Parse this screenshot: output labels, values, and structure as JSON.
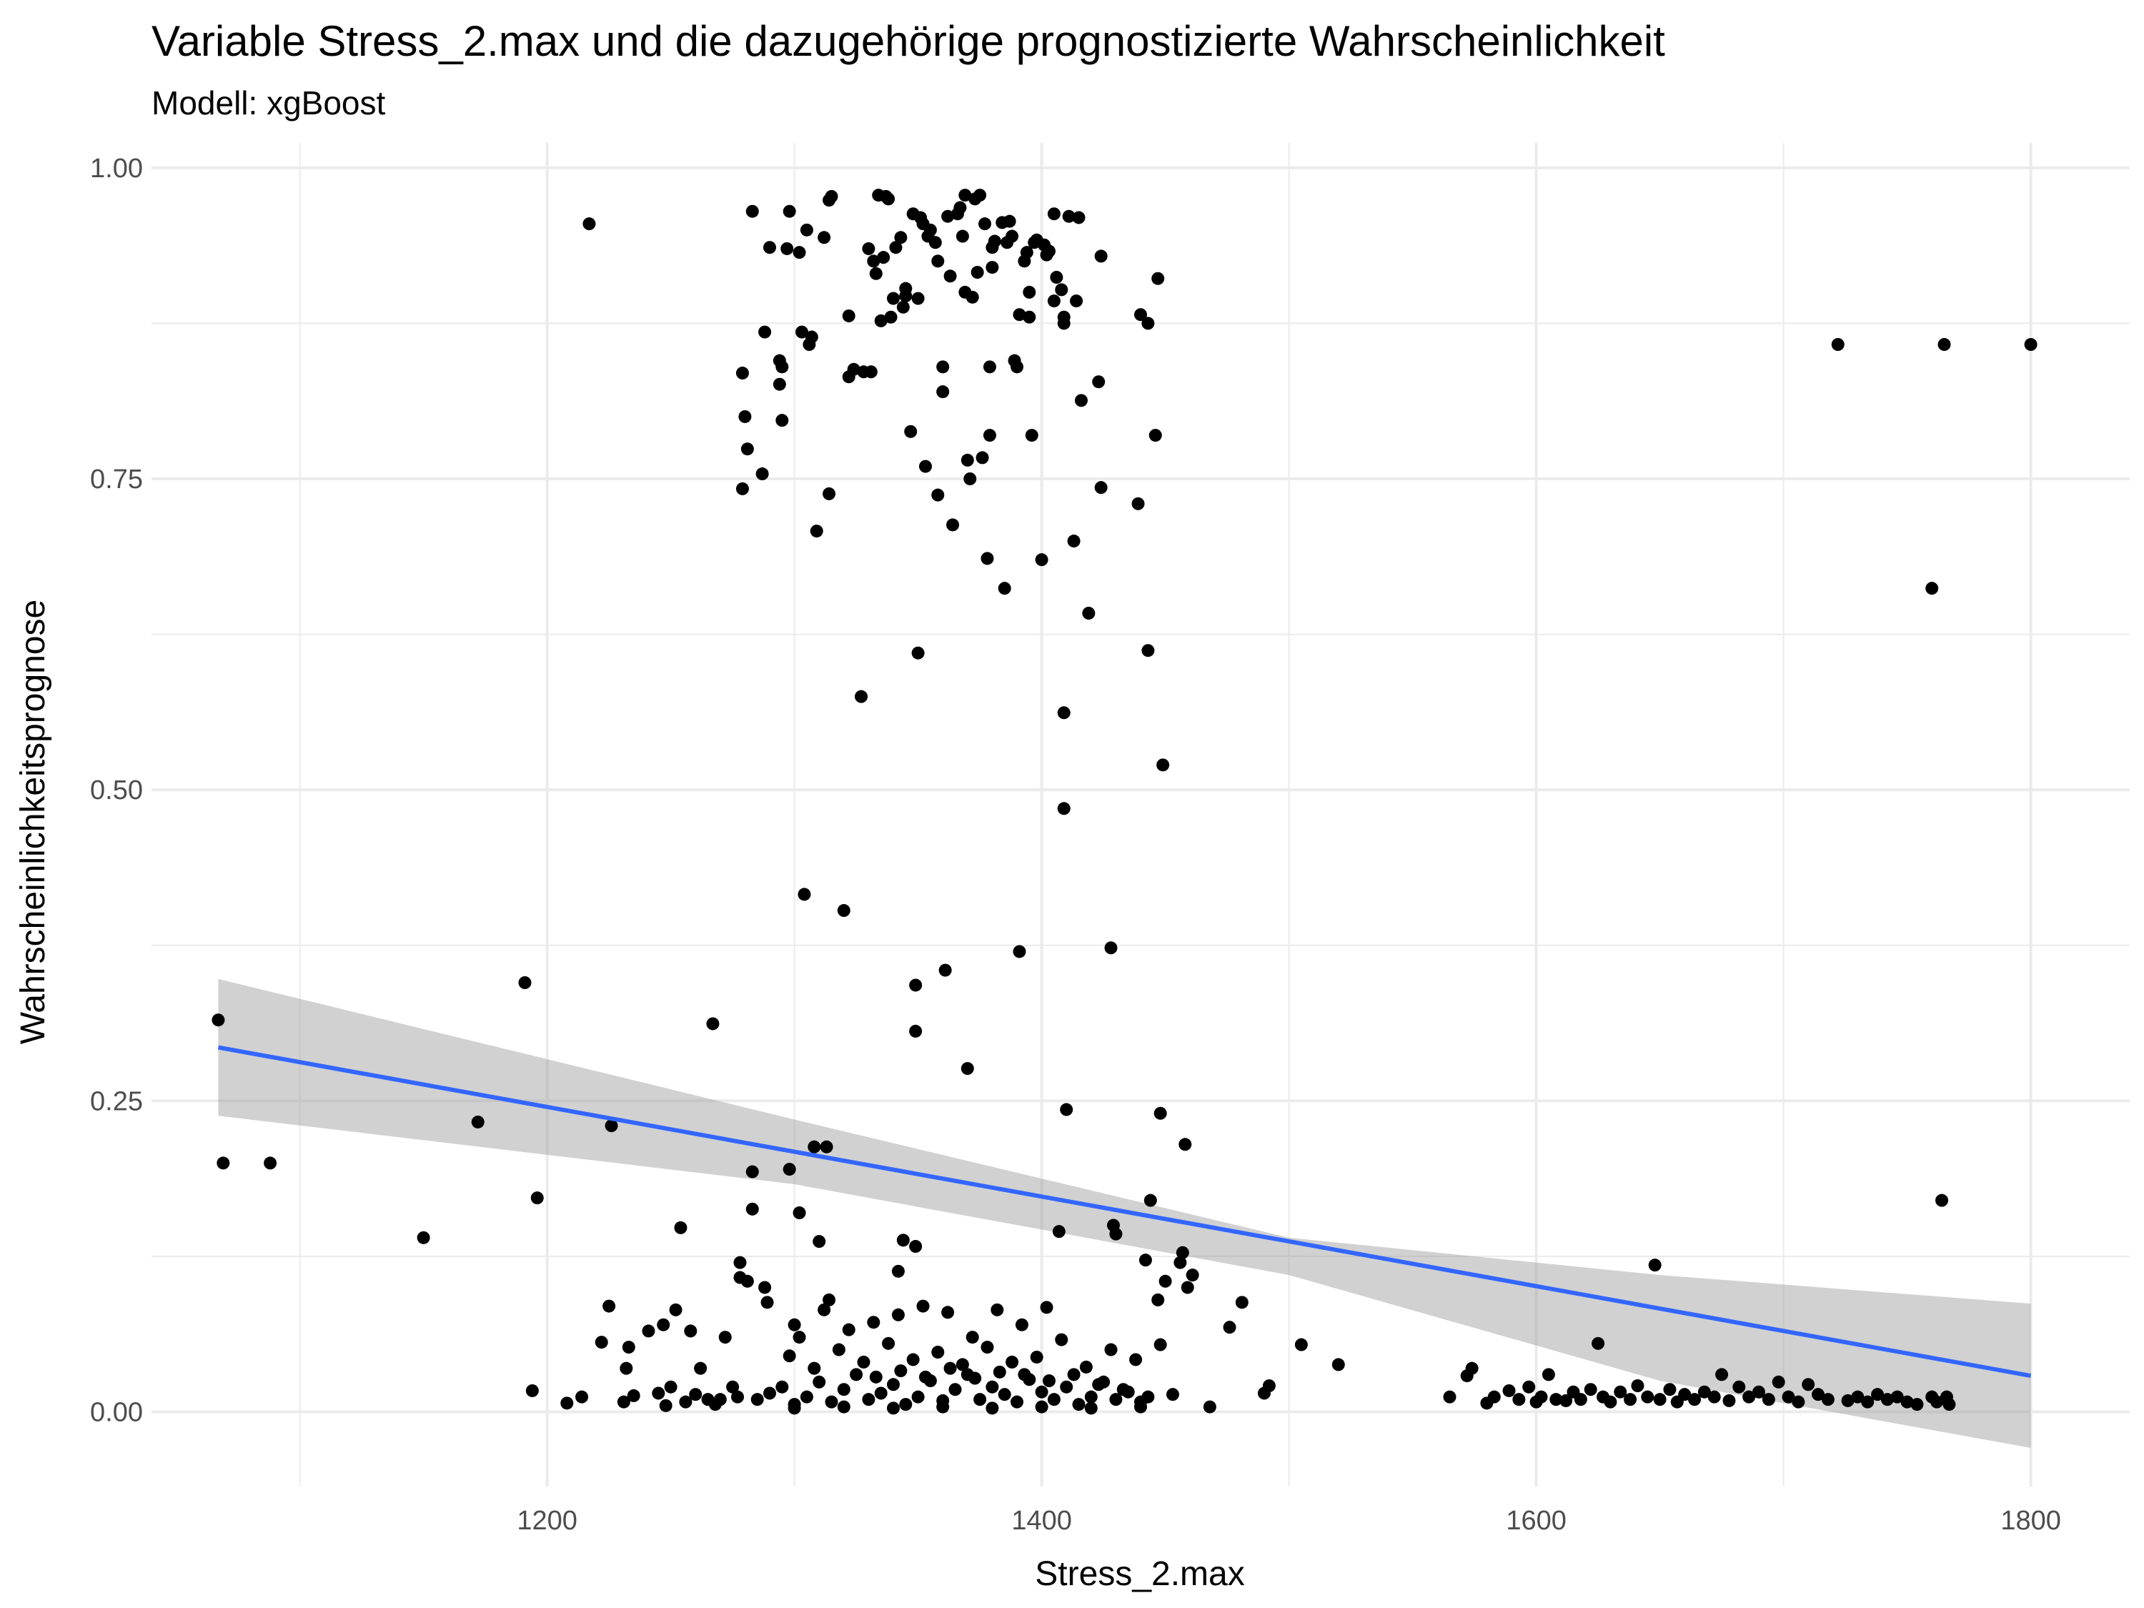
{
  "chart_data": {
    "type": "scatter",
    "title": "Variable Stress_2.max und die dazugehörige prognostizierte Wahrscheinlichkeit",
    "subtitle": "Modell: xgBoost",
    "xlabel": "Stress_2.max",
    "ylabel": "Wahrscheinlichkeitsprognose",
    "xlim": [
      1040,
      1840
    ],
    "ylim": [
      -0.06,
      1.02
    ],
    "x_ticks": [
      1200,
      1400,
      1600,
      1800
    ],
    "x_tick_labels": [
      "1200",
      "1400",
      "1600",
      "1800"
    ],
    "x_minor_ticks": [
      1100,
      1300,
      1500,
      1700
    ],
    "y_ticks": [
      0,
      0.25,
      0.5,
      0.75,
      1.0
    ],
    "y_tick_labels": [
      "0.00",
      "0.25",
      "0.50",
      "0.75",
      "1.00"
    ],
    "y_minor_ticks": [
      0.125,
      0.375,
      0.625,
      0.875
    ],
    "grid": true,
    "colors": {
      "points": "#000000",
      "fit_line": "#3366FF",
      "confidence_band": "#999999"
    },
    "trend": {
      "method": "linear",
      "line": [
        [
          1067,
          0.293
        ],
        [
          1800,
          0.029
        ]
      ],
      "band_upper": [
        [
          1067,
          0.348
        ],
        [
          1300,
          0.235
        ],
        [
          1500,
          0.14
        ],
        [
          1650,
          0.11
        ],
        [
          1800,
          0.087
        ]
      ],
      "band_lower": [
        [
          1067,
          0.238
        ],
        [
          1300,
          0.183
        ],
        [
          1500,
          0.11
        ],
        [
          1650,
          0.025
        ],
        [
          1800,
          -0.029
        ]
      ]
    },
    "points": [
      [
        1067,
        0.315
      ],
      [
        1069,
        0.2
      ],
      [
        1088,
        0.2
      ],
      [
        1150,
        0.14
      ],
      [
        1172,
        0.233
      ],
      [
        1191,
        0.345
      ],
      [
        1194,
        0.017
      ],
      [
        1196,
        0.172
      ],
      [
        1208,
        0.007
      ],
      [
        1214,
        0.012
      ],
      [
        1217,
        0.955
      ],
      [
        1222,
        0.056
      ],
      [
        1225,
        0.085
      ],
      [
        1226,
        0.23
      ],
      [
        1231,
        0.008
      ],
      [
        1232,
        0.035
      ],
      [
        1233,
        0.052
      ],
      [
        1235,
        0.013
      ],
      [
        1241,
        0.065
      ],
      [
        1245,
        0.015
      ],
      [
        1247,
        0.07
      ],
      [
        1248,
        0.005
      ],
      [
        1250,
        0.02
      ],
      [
        1252,
        0.082
      ],
      [
        1254,
        0.148
      ],
      [
        1256,
        0.008
      ],
      [
        1258,
        0.065
      ],
      [
        1260,
        0.014
      ],
      [
        1262,
        0.035
      ],
      [
        1265,
        0.01
      ],
      [
        1267,
        0.312
      ],
      [
        1268,
        0.006
      ],
      [
        1270,
        0.01
      ],
      [
        1272,
        0.06
      ],
      [
        1275,
        0.02
      ],
      [
        1277,
        0.012
      ],
      [
        1278,
        0.12
      ],
      [
        1278,
        0.108
      ],
      [
        1279,
        0.742
      ],
      [
        1279,
        0.835
      ],
      [
        1280,
        0.8
      ],
      [
        1281,
        0.774
      ],
      [
        1281,
        0.105
      ],
      [
        1283,
        0.965
      ],
      [
        1283,
        0.193
      ],
      [
        1283,
        0.163
      ],
      [
        1287,
        0.754
      ],
      [
        1288,
        0.868
      ],
      [
        1288,
        0.1
      ],
      [
        1289,
        0.088
      ],
      [
        1290,
        0.936
      ],
      [
        1294,
        0.845
      ],
      [
        1294,
        0.826
      ],
      [
        1295,
        0.84
      ],
      [
        1295,
        0.797
      ],
      [
        1297,
        0.935
      ],
      [
        1298,
        0.965
      ],
      [
        1298,
        0.195
      ],
      [
        1300,
        0.07
      ],
      [
        1302,
        0.932
      ],
      [
        1303,
        0.868
      ],
      [
        1302,
        0.16
      ],
      [
        1304,
        0.416
      ],
      [
        1305,
        0.95
      ],
      [
        1306,
        0.858
      ],
      [
        1307,
        0.864
      ],
      [
        1308,
        0.213
      ],
      [
        1309,
        0.708
      ],
      [
        1310,
        0.137
      ],
      [
        1312,
        0.944
      ],
      [
        1313,
        0.213
      ],
      [
        1314,
        0.738
      ],
      [
        1314,
        0.974
      ],
      [
        1315,
        0.977
      ],
      [
        1314,
        0.09
      ],
      [
        1320,
        0.403
      ],
      [
        1322,
        0.881
      ],
      [
        1322,
        0.832
      ],
      [
        1324,
        0.838
      ],
      [
        1327,
        0.575
      ],
      [
        1328,
        0.836
      ],
      [
        1330,
        0.935
      ],
      [
        1331,
        0.836
      ],
      [
        1332,
        0.925
      ],
      [
        1333,
        0.915
      ],
      [
        1334,
        0.978
      ],
      [
        1335,
        0.877
      ],
      [
        1336,
        0.928
      ],
      [
        1337,
        0.977
      ],
      [
        1338,
        0.975
      ],
      [
        1339,
        0.88
      ],
      [
        1340,
        0.895
      ],
      [
        1341,
        0.936
      ],
      [
        1342,
        0.113
      ],
      [
        1343,
        0.944
      ],
      [
        1344,
        0.888
      ],
      [
        1344,
        0.138
      ],
      [
        1345,
        0.897
      ],
      [
        1345,
        0.903
      ],
      [
        1347,
        0.788
      ],
      [
        1348,
        0.963
      ],
      [
        1349,
        0.343
      ],
      [
        1349,
        0.306
      ],
      [
        1349,
        0.133
      ],
      [
        1350,
        0.61
      ],
      [
        1350,
        0.895
      ],
      [
        1351,
        0.96
      ],
      [
        1352,
        0.955
      ],
      [
        1353,
        0.76
      ],
      [
        1354,
        0.945
      ],
      [
        1355,
        0.95
      ],
      [
        1357,
        0.94
      ],
      [
        1358,
        0.737
      ],
      [
        1358,
        0.925
      ],
      [
        1360,
        0.84
      ],
      [
        1360,
        0.82
      ],
      [
        1361,
        0.355
      ],
      [
        1362,
        0.961
      ],
      [
        1363,
        0.913
      ],
      [
        1364,
        0.713
      ],
      [
        1366,
        0.963
      ],
      [
        1367,
        0.968
      ],
      [
        1368,
        0.945
      ],
      [
        1369,
        0.978
      ],
      [
        1369,
        0.9
      ],
      [
        1370,
        0.765
      ],
      [
        1370,
        0.276
      ],
      [
        1371,
        0.75
      ],
      [
        1372,
        0.896
      ],
      [
        1373,
        0.975
      ],
      [
        1374,
        0.916
      ],
      [
        1375,
        0.978
      ],
      [
        1376,
        0.767
      ],
      [
        1377,
        0.955
      ],
      [
        1378,
        0.686
      ],
      [
        1379,
        0.785
      ],
      [
        1379,
        0.84
      ],
      [
        1380,
        0.936
      ],
      [
        1380,
        0.92
      ],
      [
        1381,
        0.941
      ],
      [
        1384,
        0.956
      ],
      [
        1385,
        0.662
      ],
      [
        1386,
        0.94
      ],
      [
        1387,
        0.957
      ],
      [
        1388,
        0.945
      ],
      [
        1389,
        0.845
      ],
      [
        1390,
        0.84
      ],
      [
        1391,
        0.882
      ],
      [
        1391,
        0.37
      ],
      [
        1393,
        0.925
      ],
      [
        1394,
        0.932
      ],
      [
        1395,
        0.9
      ],
      [
        1395,
        0.88
      ],
      [
        1396,
        0.785
      ],
      [
        1397,
        0.94
      ],
      [
        1398,
        0.942
      ],
      [
        1400,
        0.685
      ],
      [
        1401,
        0.938
      ],
      [
        1402,
        0.93
      ],
      [
        1403,
        0.933
      ],
      [
        1405,
        0.963
      ],
      [
        1405,
        0.893
      ],
      [
        1406,
        0.912
      ],
      [
        1407,
        0.145
      ],
      [
        1408,
        0.902
      ],
      [
        1409,
        0.88
      ],
      [
        1409,
        0.875
      ],
      [
        1409,
        0.562
      ],
      [
        1409,
        0.485
      ],
      [
        1410,
        0.243
      ],
      [
        1411,
        0.961
      ],
      [
        1413,
        0.7
      ],
      [
        1414,
        0.893
      ],
      [
        1415,
        0.96
      ],
      [
        1416,
        0.813
      ],
      [
        1419,
        0.642
      ],
      [
        1423,
        0.828
      ],
      [
        1424,
        0.743
      ],
      [
        1424,
        0.929
      ],
      [
        1428,
        0.373
      ],
      [
        1429,
        0.15
      ],
      [
        1430,
        0.143
      ],
      [
        1439,
        0.73
      ],
      [
        1440,
        0.882
      ],
      [
        1442,
        0.122
      ],
      [
        1443,
        0.875
      ],
      [
        1443,
        0.612
      ],
      [
        1444,
        0.17
      ],
      [
        1446,
        0.785
      ],
      [
        1447,
        0.911
      ],
      [
        1447,
        0.09
      ],
      [
        1448,
        0.24
      ],
      [
        1449,
        0.52
      ],
      [
        1450,
        0.105
      ],
      [
        1456,
        0.12
      ],
      [
        1457,
        0.128
      ],
      [
        1458,
        0.215
      ],
      [
        1459,
        0.1
      ],
      [
        1461,
        0.11
      ],
      [
        1468,
        0.004
      ],
      [
        1476,
        0.068
      ],
      [
        1481,
        0.088
      ],
      [
        1490,
        0.015
      ],
      [
        1492,
        0.021
      ],
      [
        1505,
        0.054
      ],
      [
        1520,
        0.038
      ],
      [
        1565,
        0.012
      ],
      [
        1572,
        0.029
      ],
      [
        1574,
        0.035
      ],
      [
        1580,
        0.007
      ],
      [
        1583,
        0.012
      ],
      [
        1589,
        0.017
      ],
      [
        1593,
        0.01
      ],
      [
        1597,
        0.02
      ],
      [
        1600,
        0.008
      ],
      [
        1602,
        0.012
      ],
      [
        1605,
        0.03
      ],
      [
        1608,
        0.01
      ],
      [
        1612,
        0.009
      ],
      [
        1615,
        0.016
      ],
      [
        1618,
        0.01
      ],
      [
        1622,
        0.018
      ],
      [
        1625,
        0.055
      ],
      [
        1627,
        0.012
      ],
      [
        1630,
        0.008
      ],
      [
        1634,
        0.016
      ],
      [
        1638,
        0.01
      ],
      [
        1641,
        0.021
      ],
      [
        1645,
        0.012
      ],
      [
        1648,
        0.118
      ],
      [
        1650,
        0.01
      ],
      [
        1654,
        0.018
      ],
      [
        1657,
        0.008
      ],
      [
        1660,
        0.014
      ],
      [
        1664,
        0.01
      ],
      [
        1668,
        0.016
      ],
      [
        1672,
        0.012
      ],
      [
        1675,
        0.03
      ],
      [
        1678,
        0.009
      ],
      [
        1682,
        0.02
      ],
      [
        1686,
        0.012
      ],
      [
        1690,
        0.016
      ],
      [
        1694,
        0.01
      ],
      [
        1698,
        0.024
      ],
      [
        1702,
        0.012
      ],
      [
        1706,
        0.008
      ],
      [
        1710,
        0.022
      ],
      [
        1714,
        0.014
      ],
      [
        1718,
        0.01
      ],
      [
        1722,
        0.858
      ],
      [
        1726,
        0.009
      ],
      [
        1730,
        0.012
      ],
      [
        1734,
        0.008
      ],
      [
        1738,
        0.014
      ],
      [
        1742,
        0.01
      ],
      [
        1746,
        0.012
      ],
      [
        1750,
        0.008
      ],
      [
        1754,
        0.006
      ],
      [
        1760,
        0.662
      ],
      [
        1760,
        0.012
      ],
      [
        1762,
        0.008
      ],
      [
        1764,
        0.17
      ],
      [
        1765,
        0.858
      ],
      [
        1766,
        0.012
      ],
      [
        1767,
        0.006
      ],
      [
        1800,
        0.858
      ],
      [
        1285,
        0.01
      ],
      [
        1290,
        0.015
      ],
      [
        1295,
        0.02
      ],
      [
        1300,
        0.006
      ],
      [
        1305,
        0.012
      ],
      [
        1310,
        0.024
      ],
      [
        1315,
        0.008
      ],
      [
        1320,
        0.018
      ],
      [
        1325,
        0.03
      ],
      [
        1330,
        0.01
      ],
      [
        1335,
        0.015
      ],
      [
        1340,
        0.022
      ],
      [
        1345,
        0.006
      ],
      [
        1350,
        0.012
      ],
      [
        1355,
        0.025
      ],
      [
        1360,
        0.009
      ],
      [
        1365,
        0.018
      ],
      [
        1370,
        0.03
      ],
      [
        1375,
        0.01
      ],
      [
        1380,
        0.02
      ],
      [
        1385,
        0.014
      ],
      [
        1390,
        0.008
      ],
      [
        1395,
        0.026
      ],
      [
        1400,
        0.016
      ],
      [
        1405,
        0.01
      ],
      [
        1410,
        0.02
      ],
      [
        1415,
        0.006
      ],
      [
        1420,
        0.012
      ],
      [
        1425,
        0.024
      ],
      [
        1430,
        0.01
      ],
      [
        1435,
        0.016
      ],
      [
        1440,
        0.008
      ],
      [
        1298,
        0.045
      ],
      [
        1308,
        0.035
      ],
      [
        1318,
        0.05
      ],
      [
        1328,
        0.04
      ],
      [
        1338,
        0.055
      ],
      [
        1348,
        0.042
      ],
      [
        1358,
        0.048
      ],
      [
        1368,
        0.038
      ],
      [
        1378,
        0.052
      ],
      [
        1388,
        0.04
      ],
      [
        1398,
        0.044
      ],
      [
        1408,
        0.058
      ],
      [
        1418,
        0.036
      ],
      [
        1428,
        0.05
      ],
      [
        1438,
        0.042
      ],
      [
        1448,
        0.054
      ],
      [
        1302,
        0.06
      ],
      [
        1312,
        0.082
      ],
      [
        1322,
        0.066
      ],
      [
        1332,
        0.072
      ],
      [
        1342,
        0.078
      ],
      [
        1352,
        0.085
      ],
      [
        1362,
        0.08
      ],
      [
        1372,
        0.06
      ],
      [
        1382,
        0.082
      ],
      [
        1392,
        0.07
      ],
      [
        1402,
        0.084
      ],
      [
        1300,
        0.003
      ],
      [
        1320,
        0.004
      ],
      [
        1340,
        0.003
      ],
      [
        1360,
        0.004
      ],
      [
        1380,
        0.003
      ],
      [
        1400,
        0.004
      ],
      [
        1420,
        0.003
      ],
      [
        1440,
        0.004
      ],
      [
        1333,
        0.028
      ],
      [
        1343,
        0.033
      ],
      [
        1353,
        0.028
      ],
      [
        1363,
        0.035
      ],
      [
        1373,
        0.027
      ],
      [
        1383,
        0.032
      ],
      [
        1393,
        0.03
      ],
      [
        1403,
        0.025
      ],
      [
        1413,
        0.03
      ],
      [
        1423,
        0.022
      ],
      [
        1433,
        0.018
      ],
      [
        1443,
        0.012
      ],
      [
        1453,
        0.014
      ]
    ]
  }
}
